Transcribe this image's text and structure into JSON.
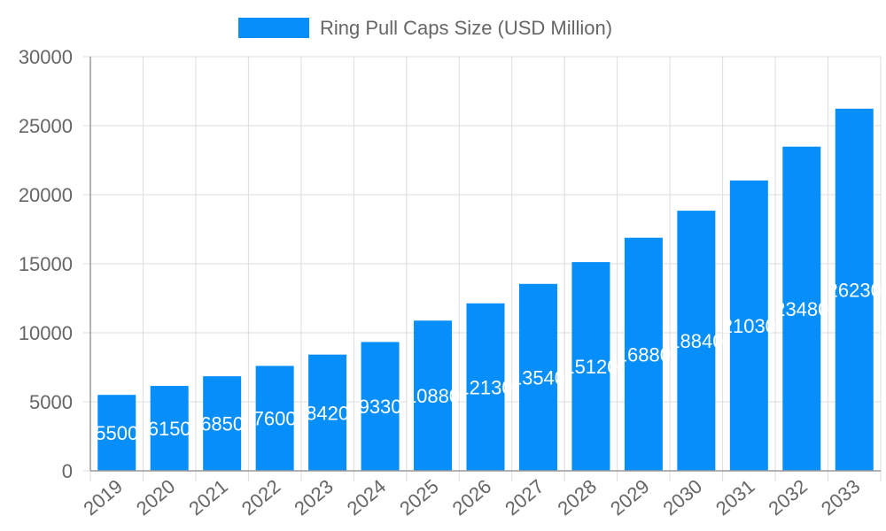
{
  "chart_data": {
    "type": "bar",
    "categories": [
      "2019",
      "2020",
      "2021",
      "2022",
      "2023",
      "2024",
      "2025",
      "2026",
      "2027",
      "2028",
      "2029",
      "2030",
      "2031",
      "2032",
      "2033"
    ],
    "series": [
      {
        "name": "Ring Pull Caps Size (USD Million)",
        "values": [
          5500,
          6150,
          6850,
          7600,
          8420,
          9330,
          10880,
          12130,
          13540,
          15120,
          16880,
          18840,
          21030,
          23480,
          26230
        ]
      }
    ],
    "ylim": [
      0,
      30000
    ],
    "yticks": [
      0,
      5000,
      10000,
      15000,
      20000,
      25000,
      30000
    ],
    "grid": true,
    "legend": "top",
    "bar_color": "#068ffa",
    "data_labels": true
  }
}
